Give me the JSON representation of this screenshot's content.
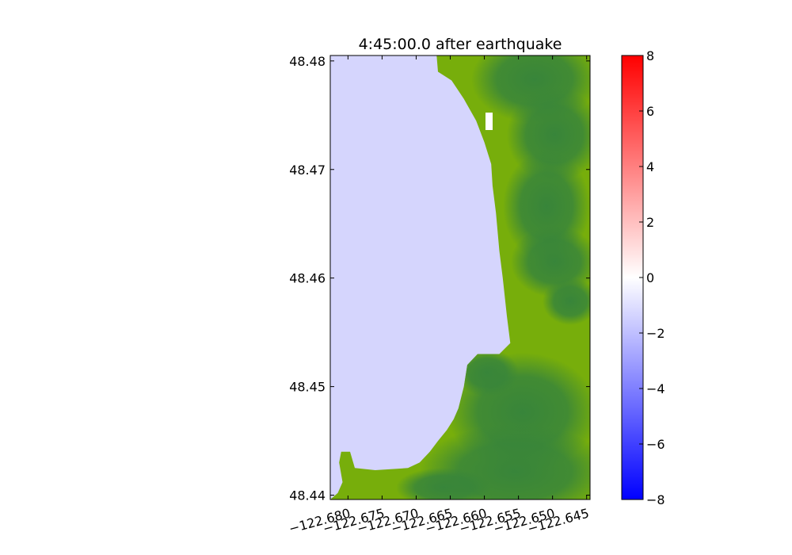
{
  "chart_data": [
    {
      "type": "heatmap",
      "title": "4:45:00.0 after earthquake",
      "xlabel": "",
      "ylabel": "",
      "xlim": [
        -122.6826,
        -122.6445
      ],
      "ylim": [
        48.4396,
        48.4805
      ],
      "x_ticks": [
        -122.68,
        -122.675,
        -122.67,
        -122.665,
        -122.66,
        -122.655,
        -122.65,
        -122.645
      ],
      "x_tick_labels": [
        "−122.680",
        "−122.675",
        "−122.670",
        "−122.665",
        "−122.660",
        "−122.655",
        "−122.650",
        "−122.645"
      ],
      "y_ticks": [
        48.44,
        48.45,
        48.46,
        48.47,
        48.48
      ],
      "y_tick_labels": [
        "48.44",
        "48.45",
        "48.46",
        "48.47",
        "48.48"
      ],
      "shoreline": {
        "description_units": "lon/lat of water-land boundary, north to south",
        "points": [
          [
            -122.667,
            48.4805
          ],
          [
            -122.6668,
            48.479
          ],
          [
            -122.6648,
            48.4782
          ],
          [
            -122.663,
            48.4765
          ],
          [
            -122.6612,
            48.4745
          ],
          [
            -122.66,
            48.4725
          ],
          [
            -122.659,
            48.4705
          ],
          [
            -122.6588,
            48.4685
          ],
          [
            -122.6583,
            48.466
          ],
          [
            -122.6578,
            48.4625
          ],
          [
            -122.6573,
            48.46
          ],
          [
            -122.6567,
            48.4565
          ],
          [
            -122.6562,
            48.454
          ],
          [
            -122.6578,
            48.453
          ],
          [
            -122.661,
            48.453
          ],
          [
            -122.6625,
            48.452
          ],
          [
            -122.663,
            48.45
          ],
          [
            -122.6638,
            48.448
          ],
          [
            -122.6645,
            48.447
          ],
          [
            -122.6655,
            48.446
          ],
          [
            -122.6668,
            48.445
          ],
          [
            -122.668,
            48.444
          ],
          [
            -122.6695,
            48.443
          ],
          [
            -122.6712,
            48.4425
          ],
          [
            -122.676,
            48.4423
          ],
          [
            -122.679,
            48.4425
          ],
          [
            -122.6797,
            48.444
          ],
          [
            -122.681,
            48.444
          ],
          [
            -122.6813,
            48.443
          ],
          [
            -122.6808,
            48.4412
          ],
          [
            -122.6815,
            48.4402
          ],
          [
            -122.6826,
            48.4396
          ]
        ]
      },
      "colors": {
        "water": "#d5d5fd",
        "land_light": "#77ae0b",
        "land_dark": "#38853a",
        "dry_spot": "#ffffff"
      },
      "colorbar": {
        "range": [
          -8,
          8
        ],
        "ticks": [
          8,
          6,
          4,
          2,
          0,
          -2,
          -4,
          -6,
          -8
        ],
        "tick_labels": [
          "8",
          "6",
          "4",
          "2",
          "0",
          "−2",
          "−4",
          "−6",
          "−8"
        ],
        "colormap": [
          "#0000ff",
          "#ffffff",
          "#ff0000"
        ]
      }
    }
  ]
}
